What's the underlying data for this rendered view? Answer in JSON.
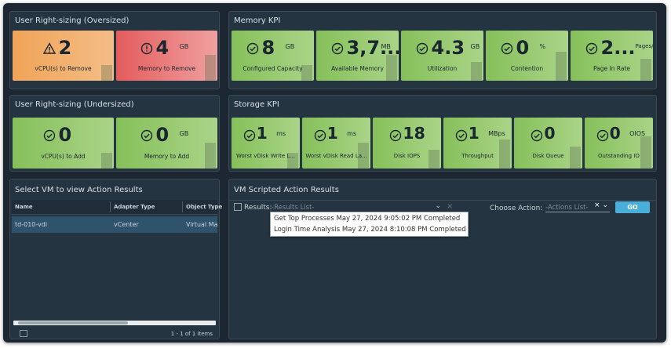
{
  "kpi_panels": [
    {
      "title": "User Right-sizing (Oversized)",
      "tiles": [
        {
          "value": "2",
          "label": "vCPU(s) to Remove"
        },
        {
          "value": "4",
          "unit": "GB",
          "label": "Memory to Remove"
        }
      ]
    },
    {
      "title": "Memory KPI",
      "tiles": [
        {
          "value": "8",
          "unit": "GB",
          "label": "Configured Capacity"
        },
        {
          "value": "3,7...",
          "unit": "MB",
          "label": "Available Memory"
        },
        {
          "value": "4.3",
          "unit": "GB",
          "label": "Utilization"
        },
        {
          "value": "0",
          "unit": "%",
          "label": "Contention"
        },
        {
          "value": "2...",
          "unit": "Pages/...",
          "label": "Page In Rate"
        }
      ]
    },
    {
      "title": "User Right-sizing (Undersized)",
      "tiles": [
        {
          "value": "0",
          "label": "vCPU(s) to Add"
        },
        {
          "value": "0",
          "unit": "GB",
          "label": "Memory to Add"
        }
      ]
    },
    {
      "title": "Storage KPI",
      "tiles": [
        {
          "value": "1",
          "unit": "ms",
          "label": "Worst vDisk Write L..."
        },
        {
          "value": "1",
          "unit": "ms",
          "label": "Worst vDisk Read La..."
        },
        {
          "value": "18",
          "label": "Disk IOPS"
        },
        {
          "value": "1",
          "unit": "MBps",
          "label": "Throughput"
        },
        {
          "value": "0",
          "label": "Disk Queue"
        },
        {
          "value": "0",
          "unit": "OIOS",
          "label": "Outstanding IO"
        }
      ]
    }
  ],
  "vm_panel": {
    "title": "Select VM to view Action Results",
    "columns": [
      "Name",
      "Adapter Type",
      "Object Type"
    ],
    "rows": [
      [
        "td-010-vdi",
        "vCenter",
        "Virtual Mac"
      ]
    ],
    "footer": "1 - 1 of 1 items"
  },
  "results_panel": {
    "title": "VM Scripted Action Results",
    "results_label": "Results:",
    "results_placeholder": "-Results List-",
    "action_label": "Choose Action:",
    "action_placeholder": "-Actions List-",
    "button": "GO",
    "dropdown_items": [
      "Get Top Processes May 27, 2024 9:05:02 PM Completed",
      "Login Time Analysis May 27, 2024 8:10:08 PM Completed"
    ]
  }
}
